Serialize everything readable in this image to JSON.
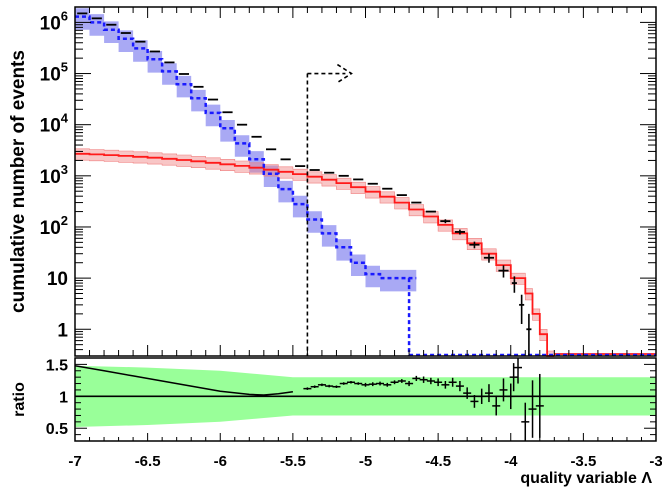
{
  "chart_data": {
    "type": "line",
    "x_range": [
      -7,
      -3
    ],
    "x_ticks": [
      "-7",
      "-6.5",
      "-6",
      "-5.5",
      "-5",
      "-4.5",
      "-4",
      "-3.5",
      "-3"
    ],
    "xlabel": "quality variable Λ",
    "main_panel": {
      "ylabel": "cumulative number of events",
      "y_scale": "log",
      "y_range": [
        0.3,
        2000000
      ],
      "y_ticks": [
        {
          "value": 1000000,
          "base": "10",
          "exp": "6"
        },
        {
          "value": 100000,
          "base": "10",
          "exp": "5"
        },
        {
          "value": 10000,
          "base": "10",
          "exp": "4"
        },
        {
          "value": 1000,
          "base": "10",
          "exp": "3"
        },
        {
          "value": 100,
          "base": "10",
          "exp": "2"
        },
        {
          "value": 10,
          "base": "10",
          "exp": ""
        },
        {
          "value": 1,
          "base": "1",
          "exp": ""
        }
      ],
      "cut_x": -5.4,
      "arrow_direction": "right",
      "series": [
        {
          "kind": "data",
          "color": "#000000",
          "x": [
            -7.0,
            -6.9,
            -6.8,
            -6.7,
            -6.6,
            -6.5,
            -6.4,
            -6.3,
            -6.2,
            -6.1,
            -6.0,
            -5.9,
            -5.8,
            -5.7,
            -5.6,
            -5.5,
            -5.4,
            -5.3,
            -5.2,
            -5.1,
            -5.0,
            -4.9,
            -4.8,
            -4.7,
            -4.6,
            -4.5,
            -4.4,
            -4.3,
            -4.2,
            -4.1,
            -4.0,
            -3.95,
            -3.9
          ],
          "y": [
            1500000,
            1200000,
            900000,
            620000,
            420000,
            270000,
            165000,
            98000,
            55000,
            31000,
            17500,
            10000,
            5800,
            3300,
            2100,
            1550,
            1300,
            1150,
            1000,
            850,
            700,
            560,
            420,
            300,
            200,
            130,
            80,
            45,
            25,
            14,
            8,
            3,
            1
          ]
        },
        {
          "kind": "background",
          "color": "#1a1aff",
          "band_color": "#8c8cf0",
          "x": [
            -7.0,
            -6.9,
            -6.8,
            -6.7,
            -6.6,
            -6.5,
            -6.4,
            -6.3,
            -6.2,
            -6.1,
            -6.0,
            -5.9,
            -5.8,
            -5.7,
            -5.6,
            -5.5,
            -5.4,
            -5.3,
            -5.2,
            -5.1,
            -5.0,
            -4.9,
            -4.8,
            -4.7
          ],
          "y": [
            1300000,
            1000000,
            720000,
            480000,
            310000,
            190000,
            110000,
            62000,
            33000,
            17000,
            8500,
            4300,
            2100,
            1100,
            550,
            280,
            140,
            75,
            40,
            20,
            12,
            10,
            10,
            10
          ],
          "err_frac": 0.45
        },
        {
          "kind": "signal",
          "color": "#ff1a1a",
          "band_color": "#f08080",
          "x": [
            -7.0,
            -6.9,
            -6.8,
            -6.7,
            -6.6,
            -6.5,
            -6.4,
            -6.3,
            -6.2,
            -6.1,
            -6.0,
            -5.9,
            -5.8,
            -5.7,
            -5.6,
            -5.5,
            -5.4,
            -5.3,
            -5.2,
            -5.1,
            -5.0,
            -4.9,
            -4.8,
            -4.7,
            -4.6,
            -4.5,
            -4.4,
            -4.3,
            -4.2,
            -4.1,
            -4.0,
            -3.9,
            -3.85,
            -3.8,
            -3.75
          ],
          "y": [
            2700,
            2620,
            2540,
            2450,
            2360,
            2260,
            2150,
            2040,
            1920,
            1800,
            1680,
            1560,
            1440,
            1320,
            1200,
            1080,
            960,
            840,
            720,
            600,
            490,
            390,
            300,
            220,
            160,
            110,
            75,
            48,
            30,
            18,
            10,
            5,
            2,
            0.8,
            0.3
          ],
          "err_frac": 0.25
        }
      ]
    },
    "ratio_panel": {
      "ylabel": "ratio",
      "y_range": [
        0.3,
        1.6
      ],
      "y_ticks": [
        "1.5",
        "1",
        "0.5"
      ],
      "reference": 1,
      "band_color": "#99ff99",
      "band": {
        "x": [
          -7.0,
          -6.5,
          -6.0,
          -5.7,
          -5.5,
          -5.3,
          -5.0,
          -4.5,
          -4.0,
          -3.5,
          -3.0
        ],
        "lo": [
          0.52,
          0.55,
          0.6,
          0.66,
          0.7,
          0.7,
          0.7,
          0.7,
          0.7,
          0.7,
          0.7
        ],
        "hi": [
          1.48,
          1.45,
          1.4,
          1.34,
          1.3,
          1.3,
          1.3,
          1.3,
          1.3,
          1.3,
          1.3
        ]
      },
      "points": {
        "x": [
          -7.0,
          -6.8,
          -6.6,
          -6.4,
          -6.2,
          -6.0,
          -5.8,
          -5.7,
          -5.6,
          -5.5,
          -5.4,
          -5.35,
          -5.3,
          -5.25,
          -5.2,
          -5.15,
          -5.1,
          -5.05,
          -5.0,
          -4.95,
          -4.9,
          -4.85,
          -4.8,
          -4.75,
          -4.7,
          -4.65,
          -4.6,
          -4.55,
          -4.5,
          -4.45,
          -4.4,
          -4.35,
          -4.3,
          -4.25,
          -4.2,
          -4.15,
          -4.1,
          -4.05,
          -4.0,
          -3.98,
          -3.95,
          -3.9,
          -3.85,
          -3.8
        ],
        "y": [
          1.48,
          1.4,
          1.32,
          1.24,
          1.16,
          1.08,
          1.03,
          1.02,
          1.04,
          1.07,
          1.12,
          1.15,
          1.18,
          1.16,
          1.15,
          1.2,
          1.22,
          1.2,
          1.18,
          1.19,
          1.2,
          1.18,
          1.22,
          1.24,
          1.2,
          1.28,
          1.26,
          1.24,
          1.22,
          1.18,
          1.22,
          1.16,
          1.05,
          0.92,
          1.0,
          1.05,
          0.85,
          1.1,
          1.0,
          1.3,
          1.45,
          0.6,
          0.8,
          0.85
        ],
        "yerr": [
          0.01,
          0.01,
          0.01,
          0.01,
          0.01,
          0.01,
          0.01,
          0.01,
          0.01,
          0.01,
          0.02,
          0.02,
          0.02,
          0.02,
          0.02,
          0.02,
          0.02,
          0.02,
          0.03,
          0.03,
          0.03,
          0.03,
          0.03,
          0.03,
          0.04,
          0.04,
          0.05,
          0.05,
          0.06,
          0.06,
          0.07,
          0.08,
          0.09,
          0.1,
          0.12,
          0.14,
          0.15,
          0.18,
          0.2,
          0.22,
          0.25,
          0.3,
          0.45,
          0.5
        ]
      }
    }
  }
}
